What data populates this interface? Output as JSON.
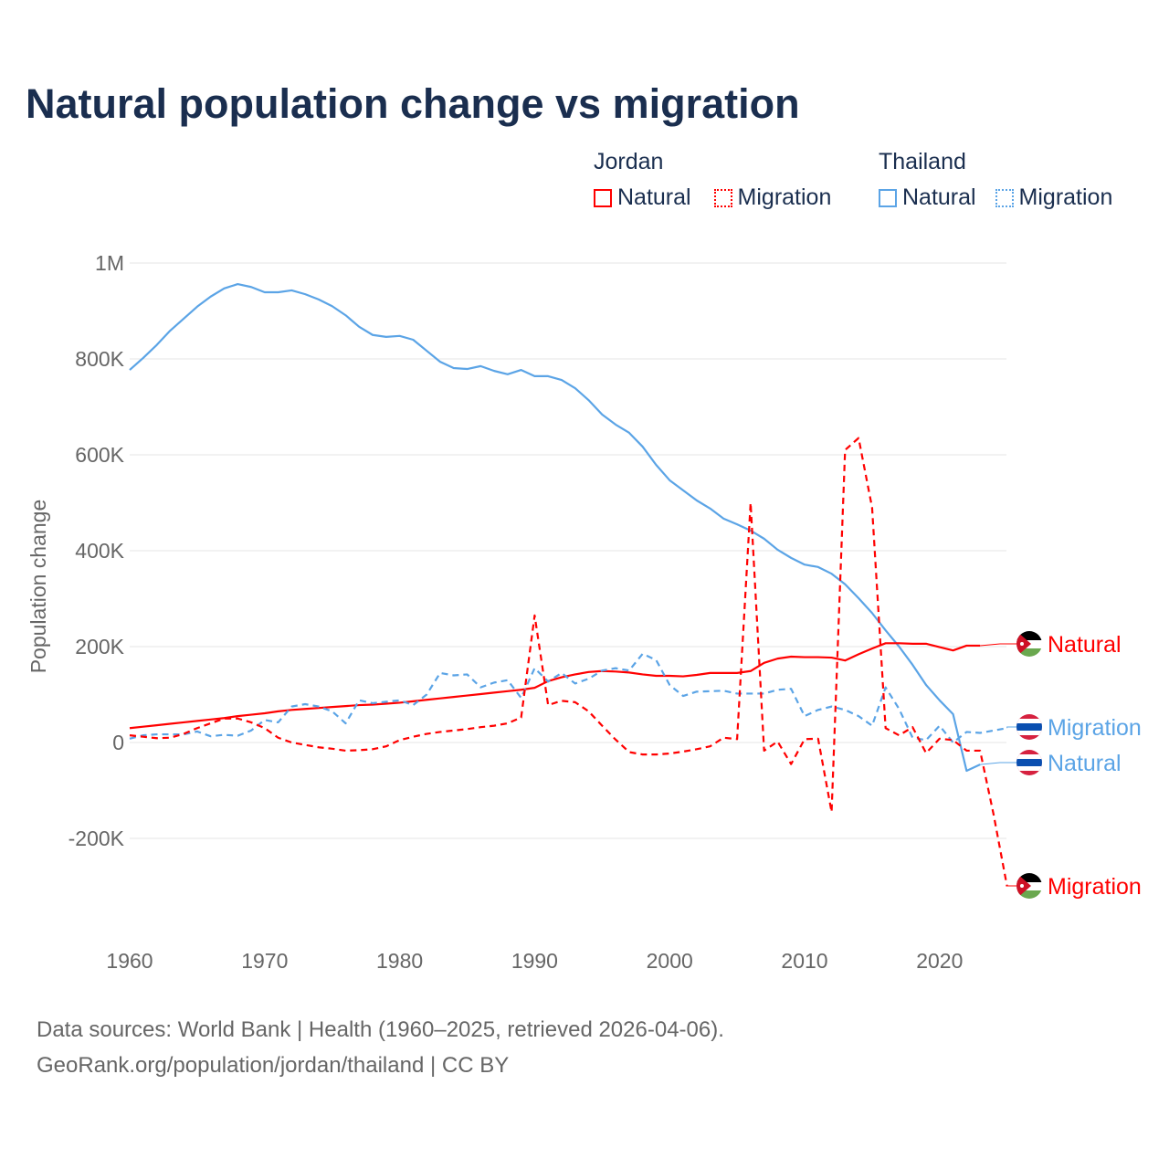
{
  "title": "Natural population change vs migration",
  "legend": [
    {
      "group": "Jordan",
      "items": [
        {
          "label": "Natural",
          "color": "#ff0000",
          "style": "solid"
        },
        {
          "label": "Migration",
          "color": "#ff0000",
          "style": "dotted"
        }
      ]
    },
    {
      "group": "Thailand",
      "items": [
        {
          "label": "Natural",
          "color": "#5ba4e6",
          "style": "solid"
        },
        {
          "label": "Migration",
          "color": "#5ba4e6",
          "style": "dotted"
        }
      ]
    }
  ],
  "footer": {
    "line1": "Data sources: World Bank | Health (1960–2025, retrieved 2026-04-06).",
    "line2": "GeoRank.org/population/jordan/thailand | CC BY"
  },
  "chart_data": {
    "type": "line",
    "title": "Natural population change vs migration",
    "xlabel": "",
    "ylabel": "Population change",
    "xlim": [
      1960,
      2025
    ],
    "ylim": [
      -300000,
      1000000
    ],
    "x_ticks": [
      1960,
      1970,
      1980,
      1990,
      2000,
      2010,
      2020
    ],
    "x_tick_labels": [
      "1960",
      "1970",
      "1980",
      "1990",
      "2000",
      "2010",
      "2020"
    ],
    "y_ticks": [
      -200000,
      0,
      200000,
      400000,
      600000,
      800000,
      1000000
    ],
    "y_tick_labels": [
      "-200K",
      "0",
      "200K",
      "400K",
      "600K",
      "800K",
      "1M"
    ],
    "grid": true,
    "legend_position": "top-right",
    "x_start": 1960,
    "series": [
      {
        "name": "Thailand Natural",
        "country": "Thailand",
        "label": "Natural",
        "color": "#5ba4e6",
        "dash": false,
        "values": [
          777,
          802,
          829,
          859,
          884,
          909,
          930,
          947,
          956,
          950,
          939,
          939,
          943,
          935,
          924,
          910,
          891,
          867,
          850,
          846,
          848,
          840,
          817,
          794,
          781,
          779,
          785,
          775,
          768,
          777,
          764,
          764,
          756,
          739,
          714,
          684,
          663,
          646,
          617,
          579,
          547,
          526,
          505,
          488,
          467,
          455,
          442,
          425,
          402,
          385,
          371,
          366,
          352,
          330,
          301,
          270,
          234,
          200,
          162,
          120,
          88,
          59,
          -59,
          -46
        ]
      },
      {
        "name": "Jordan Natural",
        "country": "Jordan",
        "label": "Natural",
        "color": "#ff0000",
        "dash": false,
        "values": [
          30,
          33,
          36,
          39,
          42,
          45,
          48,
          51,
          55,
          58,
          61,
          65,
          68,
          70,
          72,
          74,
          76,
          78,
          79,
          81,
          83,
          86,
          89,
          92,
          95,
          98,
          101,
          104,
          107,
          110,
          114,
          128,
          136,
          142,
          147,
          149,
          148,
          146,
          142,
          139,
          139,
          138,
          141,
          145,
          145,
          145,
          149,
          166,
          175,
          179,
          178,
          178,
          177,
          171,
          184,
          196,
          207,
          207,
          206,
          206,
          199,
          192,
          202,
          202
        ]
      },
      {
        "name": "Thailand Migration",
        "country": "Thailand",
        "label": "Migration",
        "color": "#5ba4e6",
        "dash": true,
        "values": [
          8,
          15,
          17,
          17,
          17,
          23,
          13,
          16,
          14,
          25,
          47,
          42,
          75,
          80,
          75,
          65,
          40,
          88,
          82,
          85,
          88,
          78,
          100,
          145,
          140,
          142,
          115,
          125,
          130,
          93,
          155,
          127,
          145,
          123,
          133,
          150,
          155,
          150,
          185,
          172,
          120,
          97,
          106,
          107,
          108,
          102,
          102,
          102,
          110,
          112,
          55,
          68,
          75,
          68,
          55,
          35,
          115,
          70,
          10,
          5,
          35,
          0,
          22,
          20,
          25,
          30
        ]
      },
      {
        "name": "Jordan Migration",
        "country": "Jordan",
        "label": "Migration",
        "color": "#ff0000",
        "dash": true,
        "values": [
          15,
          12,
          9,
          10,
          18,
          30,
          40,
          50,
          50,
          42,
          30,
          10,
          0,
          -5,
          -10,
          -13,
          -17,
          -16,
          -14,
          -8,
          5,
          12,
          18,
          22,
          25,
          28,
          32,
          35,
          40,
          52,
          265,
          78,
          87,
          84,
          65,
          35,
          6,
          -20,
          -25,
          -25,
          -23,
          -19,
          -14,
          -8,
          10,
          7,
          500,
          -17,
          2,
          -45,
          7,
          8,
          -145,
          610,
          635,
          490,
          30,
          15,
          32,
          -22,
          8,
          5,
          -17,
          -17,
          -150,
          -300
        ]
      }
    ],
    "value_unit": "thousands"
  }
}
